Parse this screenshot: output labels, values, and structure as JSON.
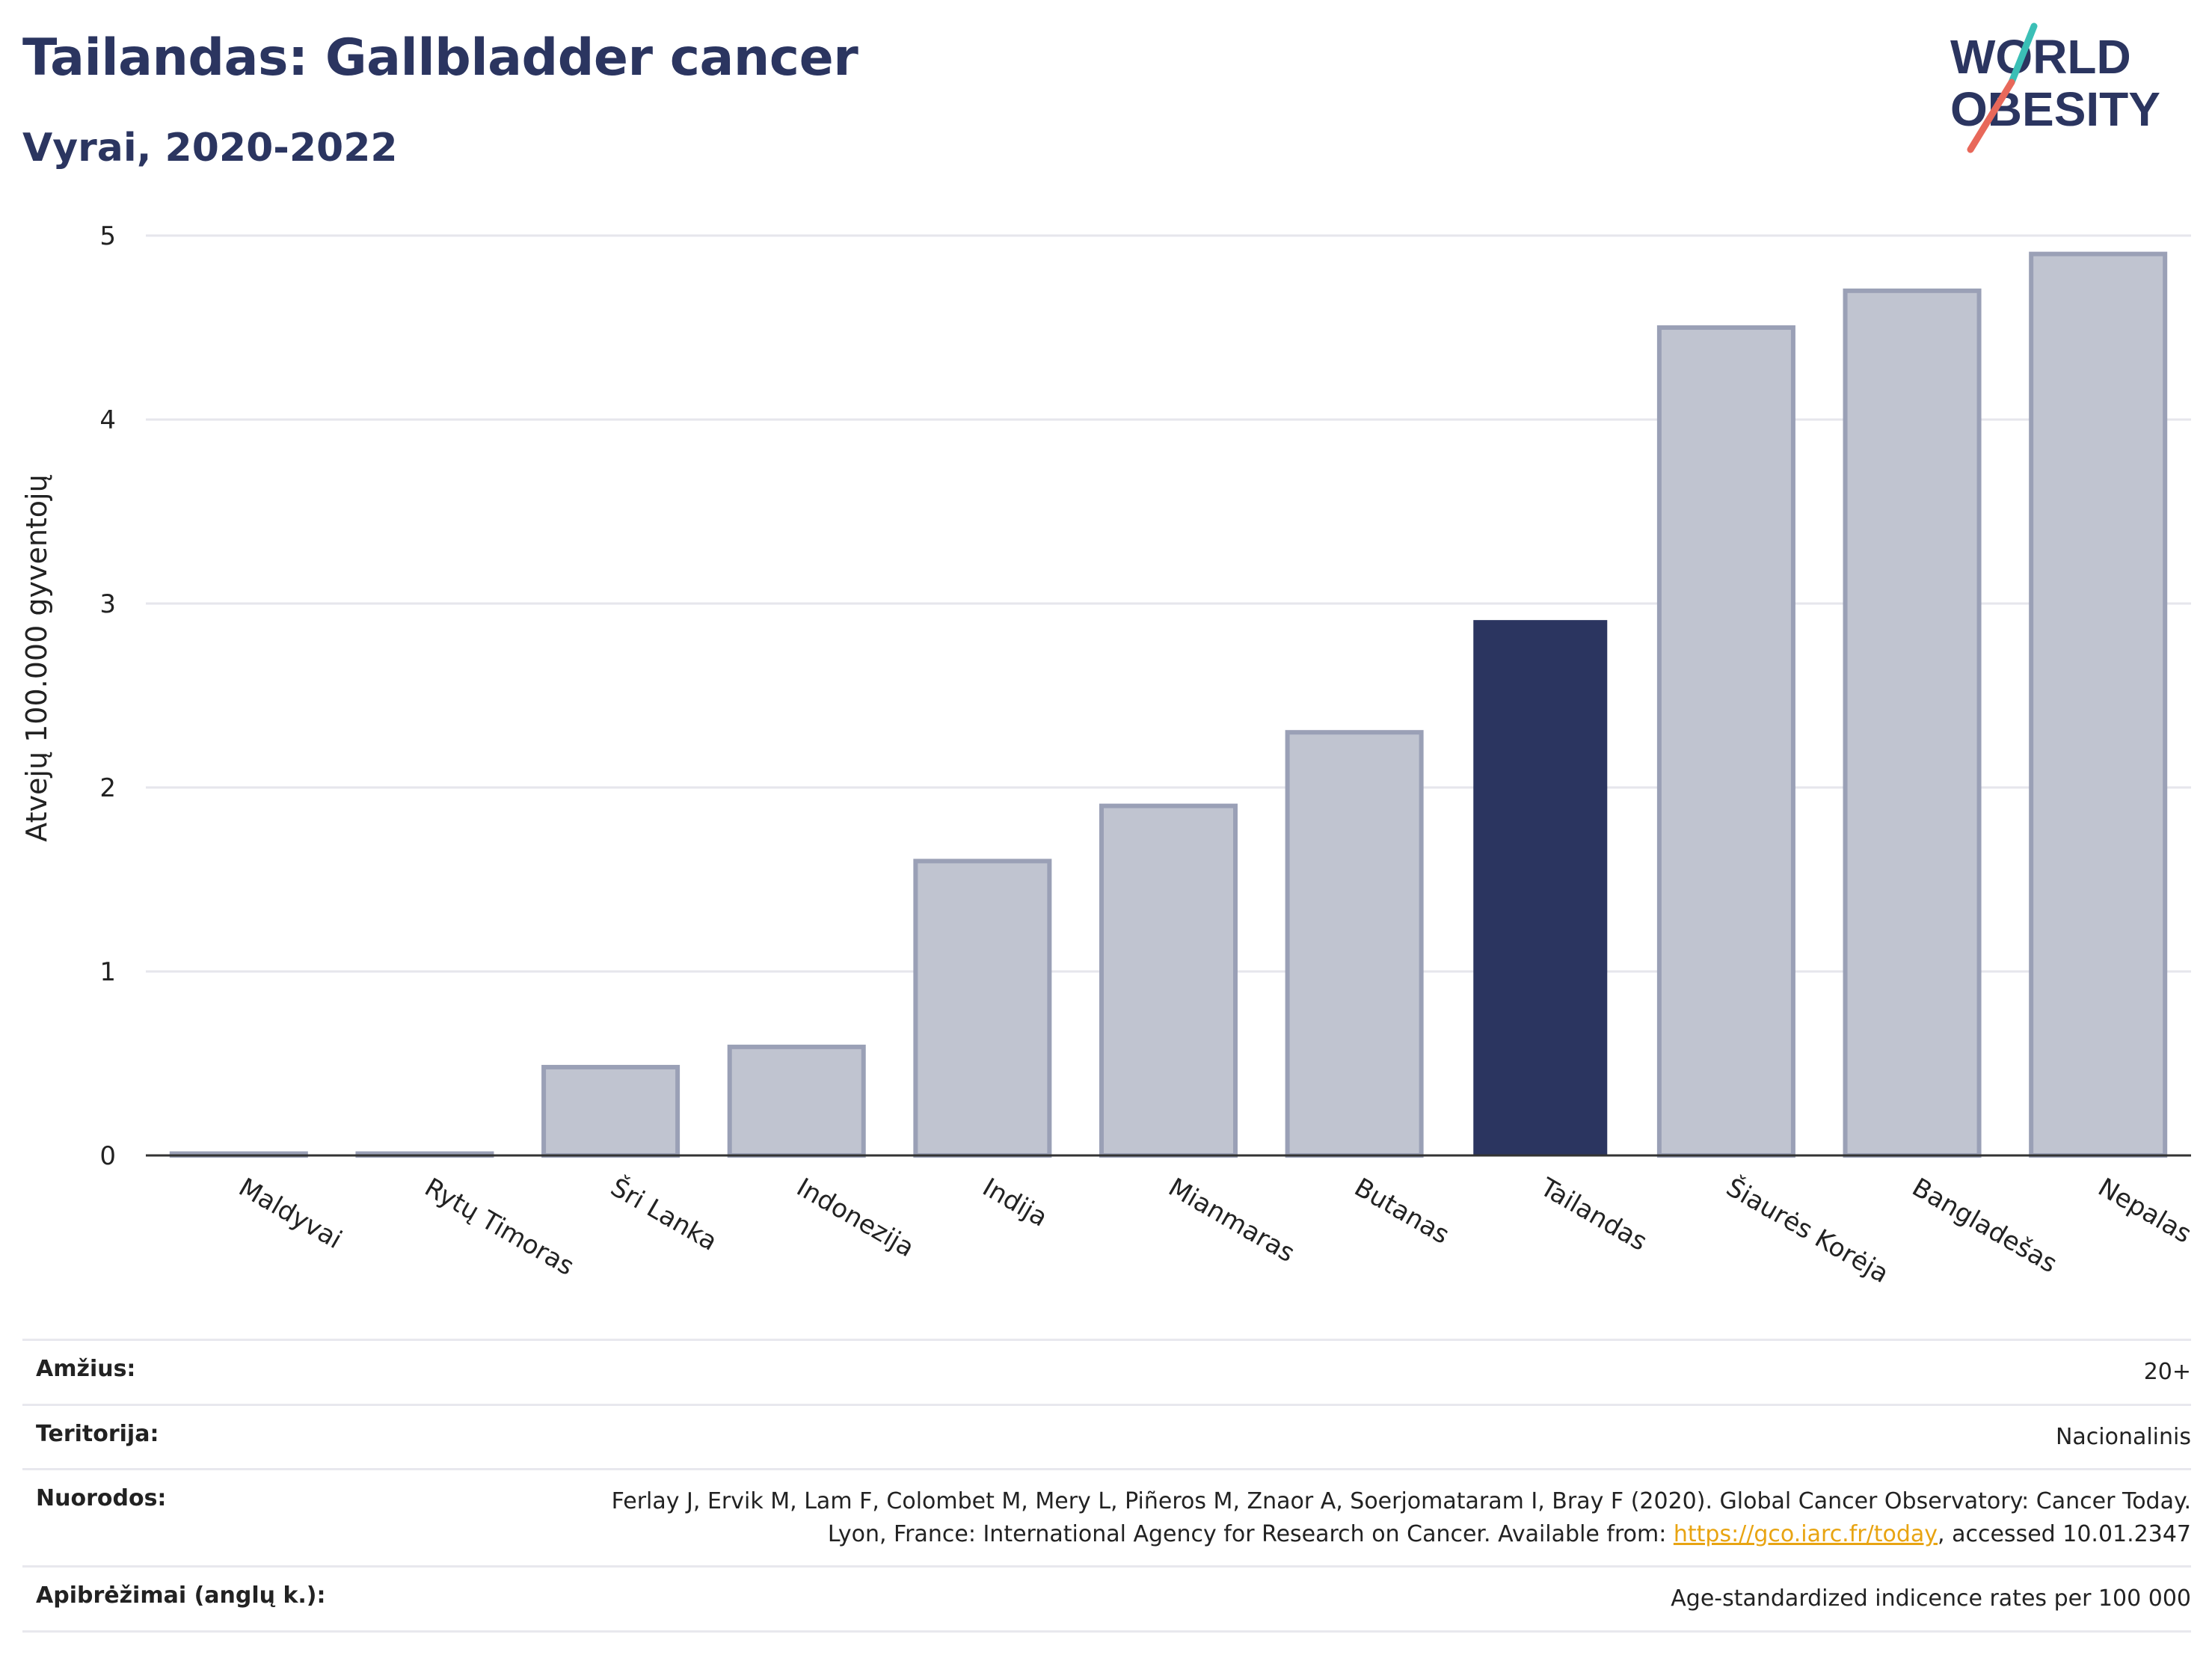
{
  "header": {
    "title": "Tailandas: Gallbladder cancer",
    "subtitle": "Vyrai, 2020-2022"
  },
  "logo": {
    "line1": "WORLD",
    "line2": "OBESITY",
    "colors": {
      "text": "#2b3560",
      "slash_top": "#3bbfb6",
      "slash_bottom": "#e8685a"
    }
  },
  "colors": {
    "bar": "#2b3560",
    "bar_other_fill": "#c0c4d0",
    "bar_other_stroke": "#9aa0b6",
    "grid": "#e6e6ec",
    "axis": "#333333",
    "link": "#e8a412"
  },
  "chart_data": {
    "type": "bar",
    "title": "Tailandas: Gallbladder cancer",
    "subtitle": "Vyrai, 2020-2022",
    "xlabel": "",
    "ylabel": "Atvejų 100.000 gyventojų",
    "ylim": [
      0,
      5
    ],
    "yticks": [
      0,
      1,
      2,
      3,
      4,
      5
    ],
    "grid": true,
    "legend": "none",
    "highlight": "Tailandas",
    "categories": [
      "Maldyvai",
      "Rytų Timoras",
      "Šri Lanka",
      "Indonezija",
      "Indija",
      "Mianmaras",
      "Butanas",
      "Tailandas",
      "Šiaurės Korėja",
      "Bangladešas",
      "Nepalas"
    ],
    "values": [
      0.01,
      0.01,
      0.48,
      0.59,
      1.6,
      1.9,
      2.3,
      2.91,
      4.5,
      4.7,
      4.9
    ]
  },
  "meta": [
    {
      "key": "Amžius:",
      "value": "20+"
    },
    {
      "key": "Teritorija:",
      "value": "Nacionalinis"
    },
    {
      "key": "Nuorodos:",
      "value_pre": "Ferlay J, Ervik M, Lam F, Colombet M, Mery L, Piñeros M, Znaor A, Soerjomataram I, Bray F (2020). Global Cancer Observatory: Cancer Today. Lyon, France: International Agency for Research on Cancer. Available from: ",
      "link": "https://gco.iarc.fr/today",
      "value_post": ", accessed 10.01.2347"
    },
    {
      "key": "Apibrėžimai (anglų k.):",
      "value": "Age-standardized indicence rates per 100 000"
    }
  ]
}
